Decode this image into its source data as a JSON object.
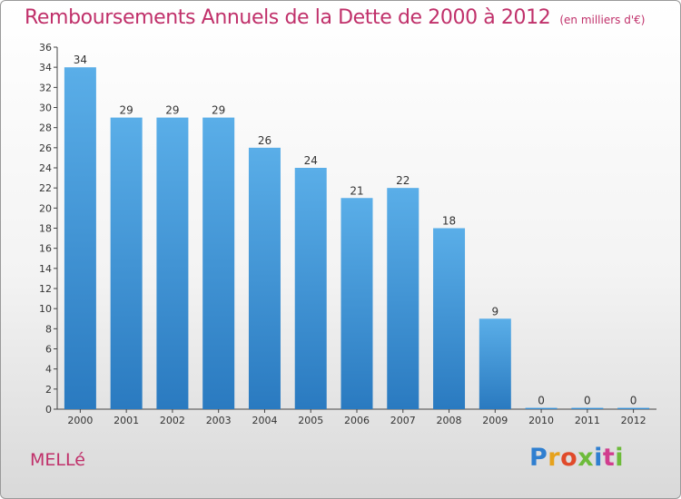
{
  "title": "Remboursements Annuels de la Dette de 2000 à 2012",
  "unit": "(en milliers d'€)",
  "town": "MELLé",
  "logo": "Proxiti",
  "colors": {
    "bar_top": "#5aaee8",
    "bar_bottom": "#2a7ac0",
    "title": "#c0306a"
  },
  "chart_data": {
    "type": "bar",
    "title": "Remboursements Annuels de la Dette de 2000 à 2012",
    "categories": [
      "2000",
      "2001",
      "2002",
      "2003",
      "2004",
      "2005",
      "2006",
      "2007",
      "2008",
      "2009",
      "2010",
      "2011",
      "2012"
    ],
    "values": [
      34,
      29,
      29,
      29,
      26,
      24,
      21,
      22,
      18,
      9,
      0,
      0,
      0
    ],
    "xlabel": "",
    "ylabel": "",
    "ylim": [
      0,
      36
    ],
    "yticks": [
      0,
      2,
      4,
      6,
      8,
      10,
      12,
      14,
      16,
      18,
      20,
      22,
      24,
      26,
      28,
      30,
      32,
      34,
      36
    ],
    "grid": false,
    "legend": "none"
  }
}
